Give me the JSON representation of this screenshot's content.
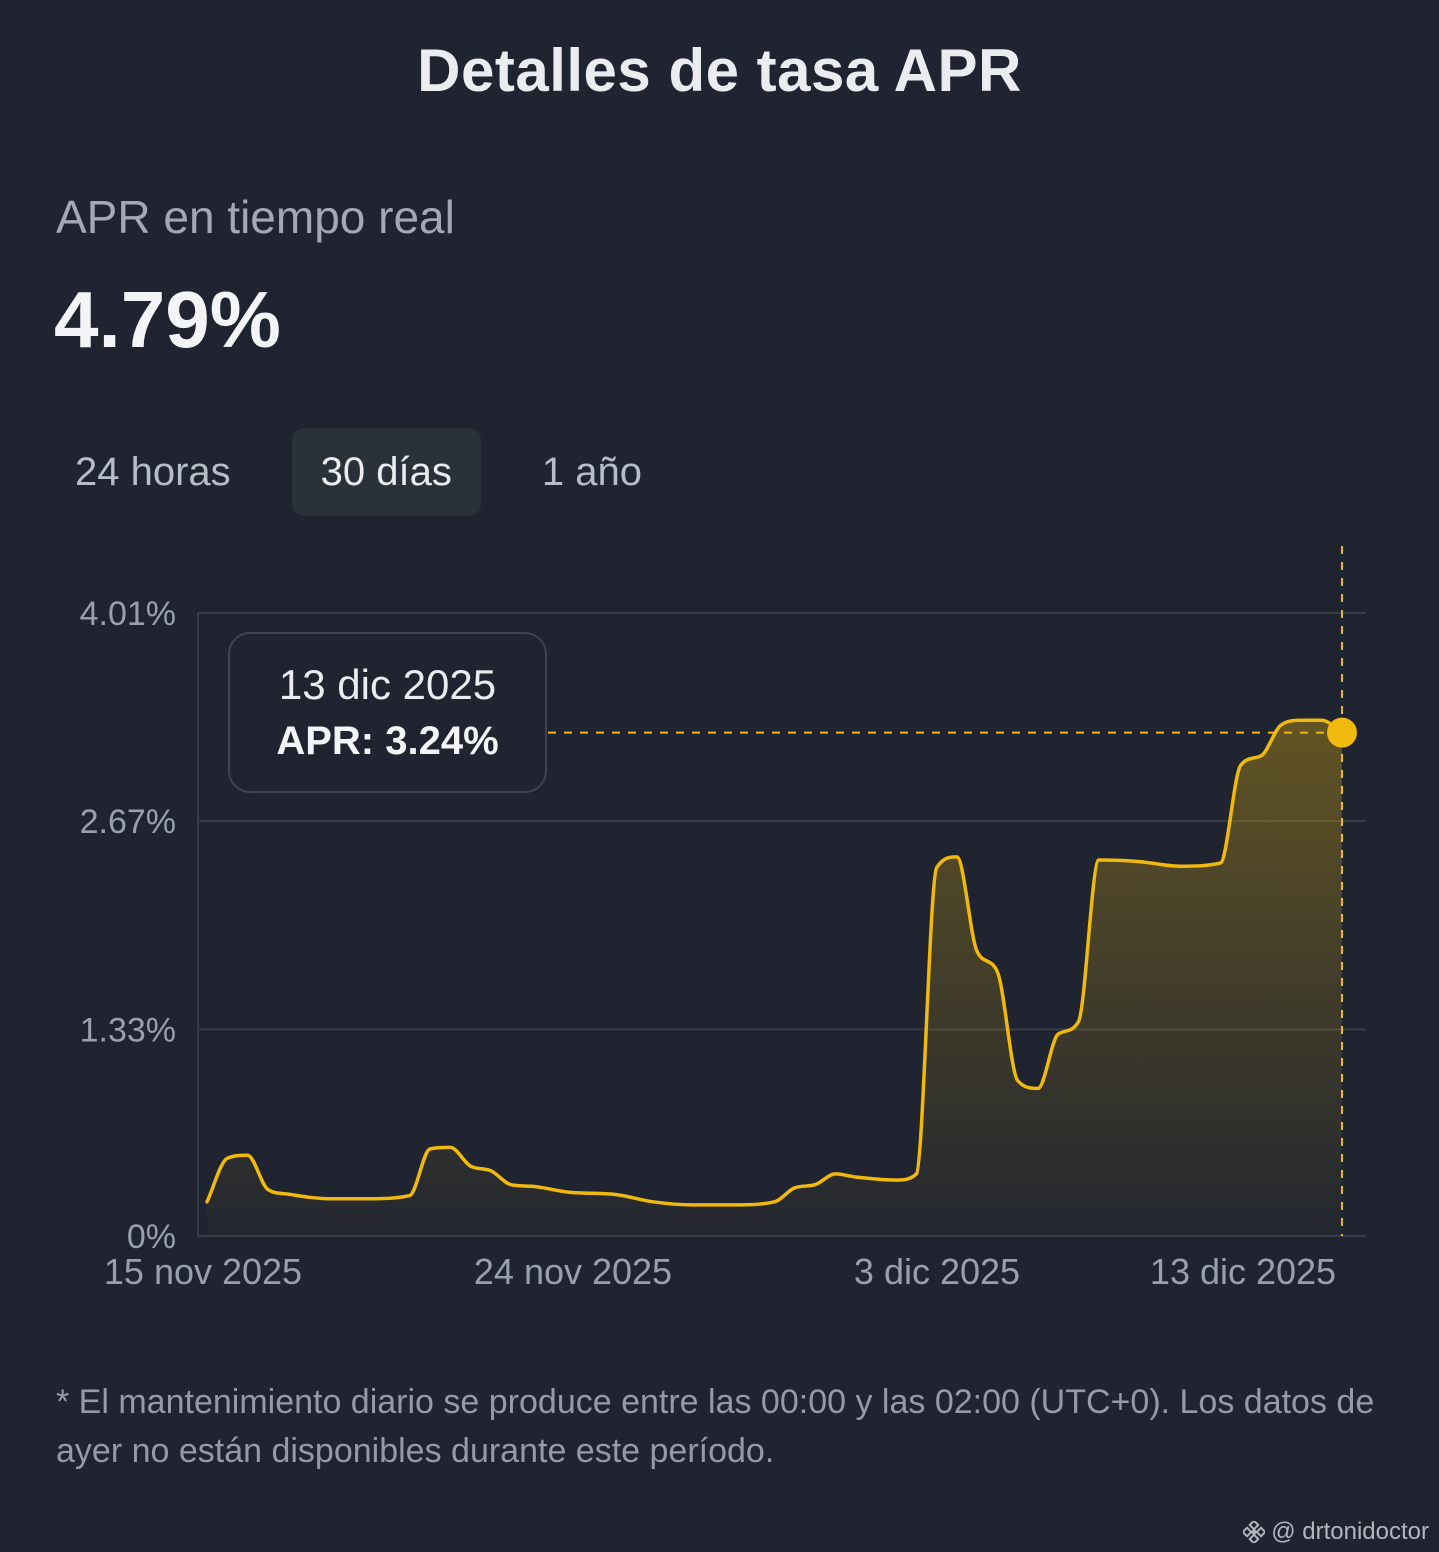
{
  "header": {
    "title": "Detalles de tasa APR"
  },
  "realtime": {
    "label": "APR en tiempo real",
    "value": "4.79%"
  },
  "tabs": [
    {
      "label": "24 horas",
      "active": false
    },
    {
      "label": "30 días",
      "active": true
    },
    {
      "label": "1 año",
      "active": false
    }
  ],
  "tooltip": {
    "date": "13 dic 2025",
    "value": "APR: 3.24%"
  },
  "chart_data": {
    "type": "area",
    "title": "",
    "xlabel": "",
    "ylabel": "",
    "y_tick_labels": [
      "0%",
      "1.33%",
      "2.67%",
      "4.01%"
    ],
    "y_ticks": [
      0,
      1.33,
      2.67,
      4.01
    ],
    "ylim": [
      0,
      4.01
    ],
    "x_tick_labels": [
      "15 nov 2025",
      "24 nov 2025",
      "3 dic 2025",
      "13 dic 2025"
    ],
    "grid": true,
    "series": [
      {
        "color": "#f0b90b",
        "points": [
          [
            "2025-11-15 00:00",
            0.22
          ],
          [
            "2025-11-15 12:00",
            0.5
          ],
          [
            "2025-11-16 00:00",
            0.52
          ],
          [
            "2025-11-16 12:00",
            0.3
          ],
          [
            "2025-11-17 00:00",
            0.27
          ],
          [
            "2025-11-17 12:00",
            0.25
          ],
          [
            "2025-11-18 00:00",
            0.24
          ],
          [
            "2025-11-19 00:00",
            0.24
          ],
          [
            "2025-11-20 00:00",
            0.26
          ],
          [
            "2025-11-20 12:00",
            0.56
          ],
          [
            "2025-11-21 00:00",
            0.57
          ],
          [
            "2025-11-21 12:00",
            0.45
          ],
          [
            "2025-11-22 00:00",
            0.42
          ],
          [
            "2025-11-22 12:00",
            0.33
          ],
          [
            "2025-11-23 00:00",
            0.32
          ],
          [
            "2025-11-24 00:00",
            0.28
          ],
          [
            "2025-11-25 00:00",
            0.27
          ],
          [
            "2025-11-26 00:00",
            0.22
          ],
          [
            "2025-11-27 00:00",
            0.2
          ],
          [
            "2025-11-28 00:00",
            0.2
          ],
          [
            "2025-11-29 00:00",
            0.22
          ],
          [
            "2025-11-29 12:00",
            0.31
          ],
          [
            "2025-11-30 00:00",
            0.33
          ],
          [
            "2025-11-30 12:00",
            0.4
          ],
          [
            "2025-12-01 00:00",
            0.38
          ],
          [
            "2025-12-02 00:00",
            0.36
          ],
          [
            "2025-12-02 12:00",
            0.4
          ],
          [
            "2025-12-03 00:00",
            2.37
          ],
          [
            "2025-12-03 12:00",
            2.44
          ],
          [
            "2025-12-04 00:00",
            1.83
          ],
          [
            "2025-12-04 12:00",
            1.7
          ],
          [
            "2025-12-05 00:00",
            1.0
          ],
          [
            "2025-12-05 12:00",
            0.95
          ],
          [
            "2025-12-06 00:00",
            1.3
          ],
          [
            "2025-12-06 12:00",
            1.38
          ],
          [
            "2025-12-07 00:00",
            2.42
          ],
          [
            "2025-12-08 00:00",
            2.41
          ],
          [
            "2025-12-09 00:00",
            2.38
          ],
          [
            "2025-12-10 00:00",
            2.4
          ],
          [
            "2025-12-10 12:00",
            3.03
          ],
          [
            "2025-12-11 00:00",
            3.09
          ],
          [
            "2025-12-11 12:00",
            3.29
          ],
          [
            "2025-12-12 00:00",
            3.32
          ],
          [
            "2025-12-12 12:00",
            3.32
          ],
          [
            "2025-12-13 00:00",
            3.24
          ]
        ]
      }
    ],
    "highlight": {
      "date": "2025-12-13",
      "value": 3.24
    }
  },
  "footnote": "* El mantenimiento diario se produce entre las 00:00 y las 02:00 (UTC+0). Los datos de ayer no están disponibles durante este período.",
  "watermark": {
    "icon": "binance-logo-icon",
    "text": "@ drtonidoctor"
  }
}
